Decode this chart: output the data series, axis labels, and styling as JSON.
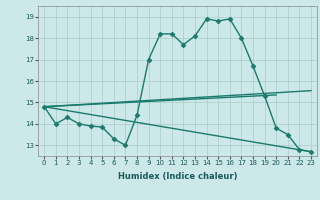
{
  "background_color": "#cce8e8",
  "grid_color": "#aacccc",
  "line_color": "#1a7a6e",
  "xlabel": "Humidex (Indice chaleur)",
  "xlim": [
    -0.5,
    23.5
  ],
  "ylim": [
    12.5,
    19.5
  ],
  "yticks": [
    13,
    14,
    15,
    16,
    17,
    18,
    19
  ],
  "xticks": [
    0,
    1,
    2,
    3,
    4,
    5,
    6,
    7,
    8,
    9,
    10,
    11,
    12,
    13,
    14,
    15,
    16,
    17,
    18,
    19,
    20,
    21,
    22,
    23
  ],
  "series": [
    {
      "x": [
        0,
        1,
        2,
        3,
        4,
        5,
        6,
        7,
        8,
        9,
        10,
        11,
        12,
        13,
        14,
        15,
        16,
        17,
        18,
        19,
        20,
        21,
        22,
        23
      ],
      "y": [
        14.8,
        14.0,
        14.3,
        14.0,
        13.9,
        13.85,
        13.3,
        13.0,
        14.4,
        17.0,
        18.2,
        18.2,
        17.7,
        18.1,
        18.9,
        18.8,
        18.9,
        18.0,
        16.7,
        15.3,
        13.8,
        13.5,
        12.8,
        12.7
      ],
      "marker": "D",
      "markersize": 2.5,
      "linewidth": 1.0
    },
    {
      "x": [
        0,
        23
      ],
      "y": [
        14.8,
        15.55
      ],
      "marker": null,
      "linewidth": 1.0
    },
    {
      "x": [
        0,
        20
      ],
      "y": [
        14.8,
        15.35
      ],
      "marker": null,
      "linewidth": 1.0
    },
    {
      "x": [
        0,
        23
      ],
      "y": [
        14.8,
        12.7
      ],
      "marker": null,
      "linewidth": 1.0
    }
  ]
}
